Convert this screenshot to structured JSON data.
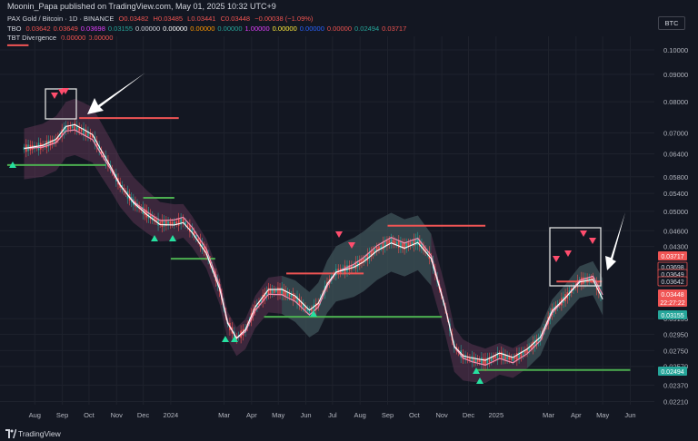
{
  "header": {
    "published": "Moonin_Papa published on TradingView.com, May 01, 2025 10:32 UTC+9"
  },
  "legend": {
    "row1": {
      "title": "PAX Gold / Bitcoin · 1D · BINANCE",
      "o": "O0.03482",
      "h": "H0.03485",
      "l": "L0.03441",
      "c": "C0.03448",
      "chg": "−0.00038 (−1.09%)"
    },
    "row2": {
      "name": "TBO",
      "values": [
        "0.03642",
        "0.03649",
        "0.03698",
        "0.03155",
        "0.00000",
        "0.00000",
        "0.00000",
        "0.00000",
        "1.00000",
        "0.00000",
        "0.00000",
        "0.00000",
        "0.02494",
        "0.03717"
      ],
      "colors": [
        "#ef5350",
        "#ef5350",
        "#e040fb",
        "#26a69a",
        "#d1d4dc",
        "#ffffff",
        "#ff9800",
        "#26a69a",
        "#e040fb",
        "#ffeb3b",
        "#2962ff",
        "#ef5350",
        "#26a69a",
        "#ef5350"
      ]
    },
    "row3": {
      "name": "TBT Divergence",
      "values": [
        "0.00000",
        "0.00000"
      ],
      "colors": [
        "#ef5350",
        "#ef5350"
      ]
    }
  },
  "badge": "BTC",
  "footer": {
    "brand": "TradingView"
  },
  "colors": {
    "background": "#131722",
    "grid": "#1e222d",
    "resistance": "#f05454",
    "support": "#4caf50",
    "candle_up": "#26a69a",
    "candle_down": "#ef5350",
    "ma_fast": "#ffffff",
    "ma_slow": "#f48fb1",
    "band_bear": "#6d3b5e",
    "band_bull": "#2d5c58"
  },
  "chart_data": {
    "type": "line",
    "title": "PAX Gold / Bitcoin · 1D · BINANCE",
    "y_scale": "log",
    "ylim": [
      0.0218,
      0.106
    ],
    "y_ticks": [
      "0.10000",
      "0.09000",
      "0.08000",
      "0.07000",
      "0.06400",
      "0.05800",
      "0.05400",
      "0.05000",
      "0.04600",
      "0.04300",
      "0.03155",
      "0.02950",
      "0.02750",
      "0.02570",
      "0.02370",
      "0.02210"
    ],
    "x_ticks": [
      "Aug",
      "Sep",
      "Oct",
      "Nov",
      "Dec",
      "2024",
      "Mar",
      "Apr",
      "May",
      "Jun",
      "Jul",
      "Aug",
      "Sep",
      "Oct",
      "Nov",
      "Dec",
      "2025",
      "Mar",
      "Apr",
      "May",
      "Jun"
    ],
    "price_labels": [
      {
        "text": "0.03717",
        "kind": "red"
      },
      {
        "text": "0.03698",
        "kind": "outline"
      },
      {
        "text": "0.03649",
        "kind": "outline"
      },
      {
        "text": "0.03642",
        "kind": "outline"
      },
      {
        "text": "0.03448",
        "kind": "red"
      },
      {
        "text": "22:27:22",
        "kind": "red"
      },
      {
        "text": "0.03155",
        "kind": "green"
      },
      {
        "text": "0.02494",
        "kind": "green"
      }
    ],
    "series": [
      {
        "name": "PAX Gold / Bitcoin",
        "x": [
          "2023-07-20",
          "2023-08-10",
          "2023-08-25",
          "2023-09-05",
          "2023-09-15",
          "2023-09-25",
          "2023-10-05",
          "2023-10-15",
          "2023-10-25",
          "2023-11-05",
          "2023-11-20",
          "2023-12-05",
          "2023-12-20",
          "2024-01-05",
          "2024-01-15",
          "2024-01-25",
          "2024-02-10",
          "2024-02-25",
          "2024-03-05",
          "2024-03-15",
          "2024-03-25",
          "2024-04-05",
          "2024-04-20",
          "2024-05-05",
          "2024-05-20",
          "2024-06-05",
          "2024-06-15",
          "2024-06-25",
          "2024-07-05",
          "2024-07-15",
          "2024-07-25",
          "2024-08-05",
          "2024-08-20",
          "2024-09-05",
          "2024-09-20",
          "2024-10-05",
          "2024-10-20",
          "2024-11-05",
          "2024-11-15",
          "2024-11-25",
          "2024-12-05",
          "2024-12-20",
          "2025-01-05",
          "2025-01-20",
          "2025-02-05",
          "2025-02-20",
          "2025-03-05",
          "2025-03-20",
          "2025-04-05",
          "2025-04-20",
          "2025-05-01"
        ],
        "y": [
          0.0655,
          0.0662,
          0.0678,
          0.0715,
          0.072,
          0.0705,
          0.069,
          0.0645,
          0.0605,
          0.056,
          0.052,
          0.0495,
          0.0475,
          0.0475,
          0.048,
          0.046,
          0.042,
          0.036,
          0.031,
          0.029,
          0.03,
          0.033,
          0.0355,
          0.0355,
          0.0345,
          0.0325,
          0.0335,
          0.0365,
          0.0385,
          0.039,
          0.0395,
          0.0405,
          0.0425,
          0.044,
          0.043,
          0.044,
          0.041,
          0.033,
          0.028,
          0.0268,
          0.0265,
          0.0262,
          0.027,
          0.0265,
          0.0275,
          0.029,
          0.0325,
          0.0345,
          0.037,
          0.0375,
          0.0345
        ]
      }
    ]
  }
}
